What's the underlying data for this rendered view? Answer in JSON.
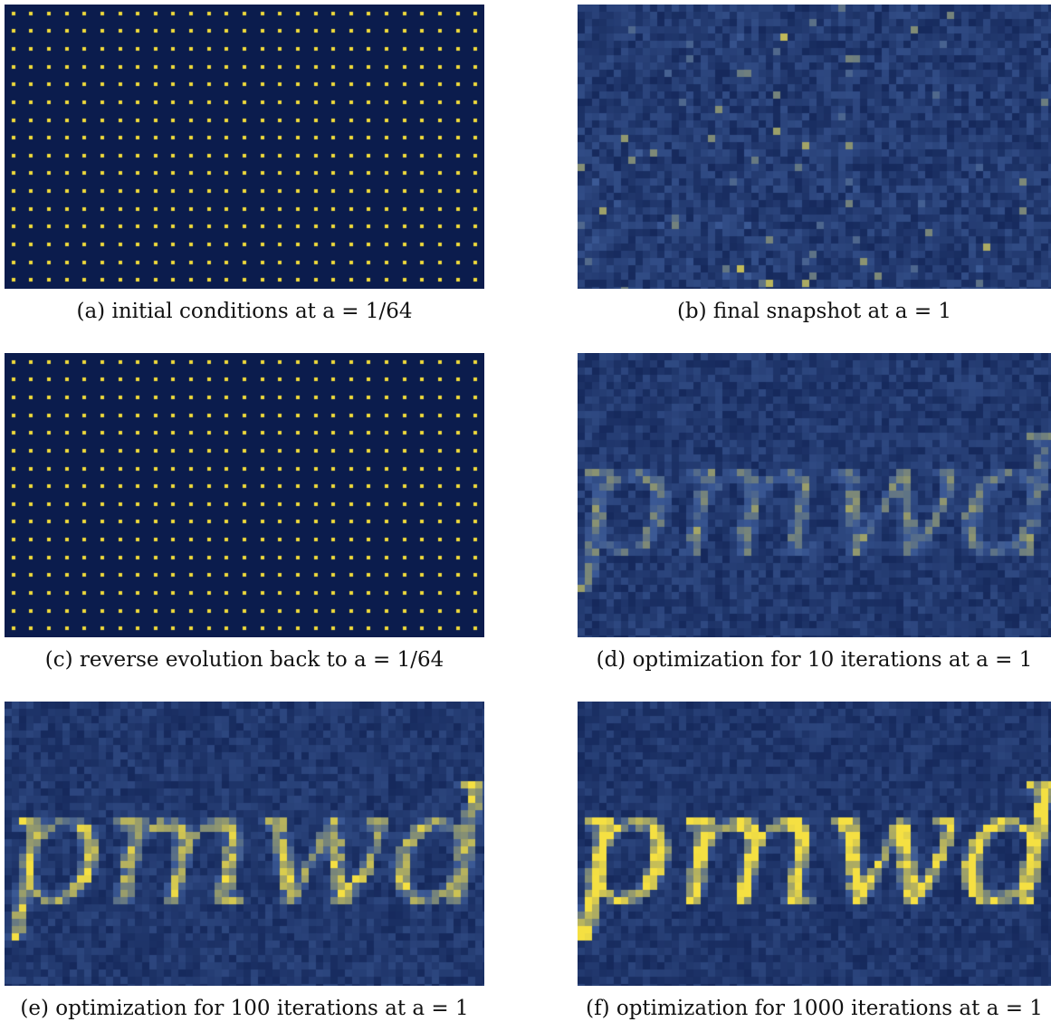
{
  "figure": {
    "colormap": {
      "low": "#0a1a4a",
      "high": "#f5e042"
    },
    "panels": [
      {
        "id": "a",
        "caption": "(a) initial conditions at a = 1/64",
        "mode": "lattice",
        "text_strength": 0,
        "noise_strength": 0
      },
      {
        "id": "b",
        "caption": "(b) final snapshot at a = 1",
        "mode": "clustered",
        "text_strength": 0,
        "noise_strength": 0.55
      },
      {
        "id": "c",
        "caption": "(c) reverse evolution back to a = 1/64",
        "mode": "lattice",
        "text_strength": 0,
        "noise_strength": 0
      },
      {
        "id": "d",
        "caption": "(d) optimization for 10 iterations at a = 1",
        "mode": "text",
        "text": "pmwd",
        "text_strength": 0.4,
        "noise_strength": 0.4
      },
      {
        "id": "e",
        "caption": "(e) optimization for 100 iterations at a = 1",
        "mode": "text",
        "text": "pmwd",
        "text_strength": 0.65,
        "noise_strength": 0.3
      },
      {
        "id": "f",
        "caption": "(f) optimization for 1000 iterations at a = 1",
        "mode": "text",
        "text": "pmwd",
        "text_strength": 0.9,
        "noise_strength": 0.22
      }
    ]
  }
}
